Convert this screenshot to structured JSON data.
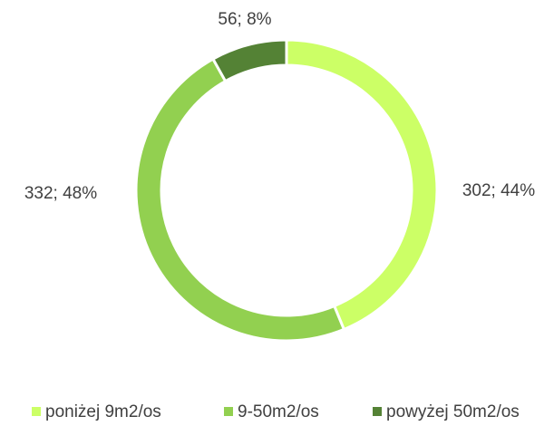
{
  "chart_data": {
    "type": "donut",
    "categories": [
      "poniżej 9m2/os",
      "9-50m2/os",
      "powyżej 50m2/os"
    ],
    "values": [
      302,
      332,
      56
    ],
    "value_labels": [
      "302; 44%",
      "332; 48%",
      "56; 8%"
    ],
    "colors": [
      "#ccff66",
      "#92d050",
      "#548235"
    ],
    "legend": "bottom"
  }
}
